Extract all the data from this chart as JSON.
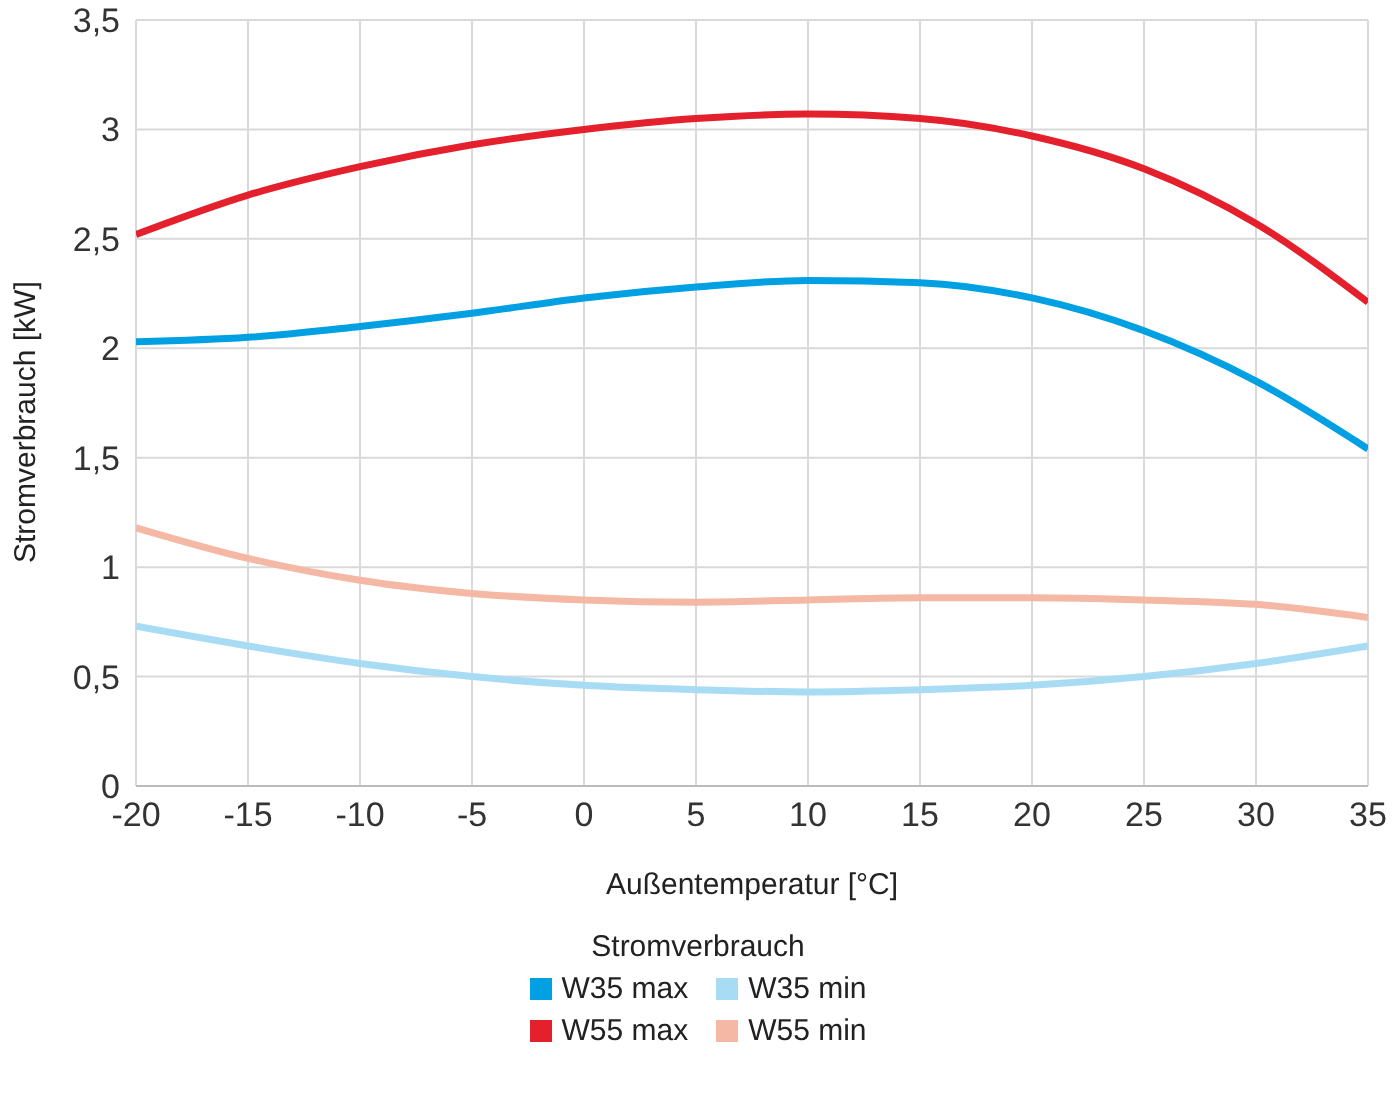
{
  "chart_data": {
    "type": "line",
    "xlabel": "Außentemperatur [°C]",
    "ylabel": "Stromverbrauch [kW]",
    "legend_title": "Stromverbrauch",
    "x": [
      -20,
      -15,
      -10,
      -5,
      0,
      5,
      10,
      15,
      20,
      25,
      30,
      35
    ],
    "xlim": [
      -20,
      35
    ],
    "xticks": [
      -20,
      -15,
      -10,
      -5,
      0,
      5,
      10,
      15,
      20,
      25,
      30,
      35
    ],
    "ylim": [
      0,
      3.5
    ],
    "yticks": [
      0,
      {
        "value": 0.5,
        "label": "0,5"
      },
      1,
      {
        "value": 1.5,
        "label": "1,5"
      },
      2,
      {
        "value": 2.5,
        "label": "2,5"
      },
      3,
      {
        "value": 3.5,
        "label": "3,5"
      }
    ],
    "grid": true,
    "legend": "bottom",
    "marker": "none",
    "line_style": "solid",
    "series": [
      {
        "name": "W35 max",
        "color": "#00a0e3",
        "values": [
          2.03,
          2.05,
          2.1,
          2.16,
          2.23,
          2.28,
          2.31,
          2.3,
          2.23,
          2.08,
          1.85,
          1.54
        ]
      },
      {
        "name": "W35 min",
        "color": "#a8dcf5",
        "values": [
          0.73,
          0.64,
          0.56,
          0.5,
          0.46,
          0.44,
          0.43,
          0.44,
          0.46,
          0.5,
          0.56,
          0.64
        ]
      },
      {
        "name": "W55 max",
        "color": "#e3202b",
        "values": [
          2.52,
          2.7,
          2.83,
          2.93,
          3.0,
          3.05,
          3.07,
          3.05,
          2.97,
          2.82,
          2.57,
          2.21
        ]
      },
      {
        "name": "W55 min",
        "color": "#f5b8a5",
        "values": [
          1.18,
          1.04,
          0.94,
          0.88,
          0.85,
          0.84,
          0.85,
          0.86,
          0.86,
          0.85,
          0.83,
          0.77
        ]
      }
    ]
  }
}
